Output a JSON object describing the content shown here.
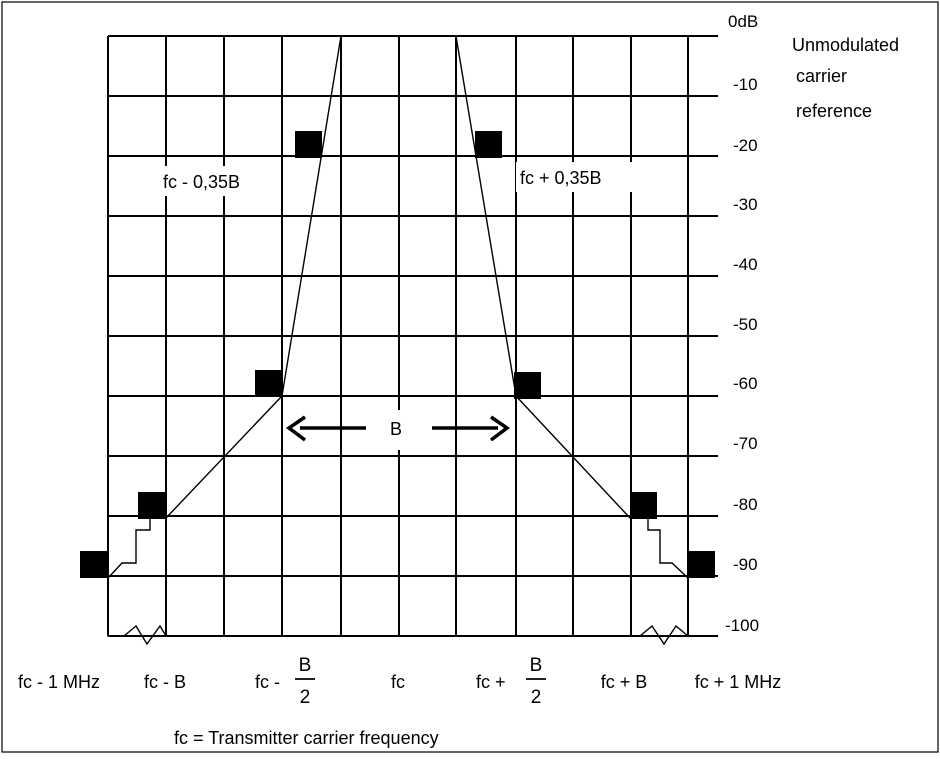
{
  "diagram": {
    "y_axis": {
      "tick_labels": [
        "0dB",
        "-10",
        "-20",
        "-30",
        "-40",
        "-50",
        "-60",
        "-70",
        "-80",
        "-90",
        "-100"
      ],
      "values": [
        0,
        -10,
        -20,
        -30,
        -40,
        -50,
        -60,
        -70,
        -80,
        -90,
        -100
      ]
    },
    "reference_label": [
      "Unmodulated",
      "carrier",
      "reference"
    ],
    "x_axis": {
      "labels": [
        {
          "text": "fc - 1 MHz"
        },
        {
          "text": "fc - B"
        },
        {
          "text": "fc - ",
          "fraction": {
            "num": "B",
            "den": "2"
          }
        },
        {
          "text": "fc"
        },
        {
          "text": "fc + ",
          "fraction": {
            "num": "B",
            "den": "2"
          }
        },
        {
          "text": "fc + B"
        },
        {
          "text": "fc + 1 MHz"
        }
      ]
    },
    "annotations": {
      "left_035": "fc - 0,35B",
      "right_035": "fc + 0,35B",
      "bandwidth": "B"
    },
    "footnote": "fc = Transmitter carrier frequency",
    "mask_points_db": {
      "left": [
        {
          "at": "fc - 1 MHz",
          "db": -90
        },
        {
          "at": "fc - B",
          "db": -80
        },
        {
          "at": "fc - B/2",
          "db": -60
        },
        {
          "at": "fc - 0,35B",
          "db": -20
        }
      ],
      "right": [
        {
          "at": "fc + 0,35B",
          "db": -20
        },
        {
          "at": "fc + B/2",
          "db": -60
        },
        {
          "at": "fc + B",
          "db": -80
        },
        {
          "at": "fc + 1 MHz",
          "db": -90
        }
      ]
    },
    "colors": {
      "ink": "#000000",
      "background": "#ffffff"
    }
  }
}
